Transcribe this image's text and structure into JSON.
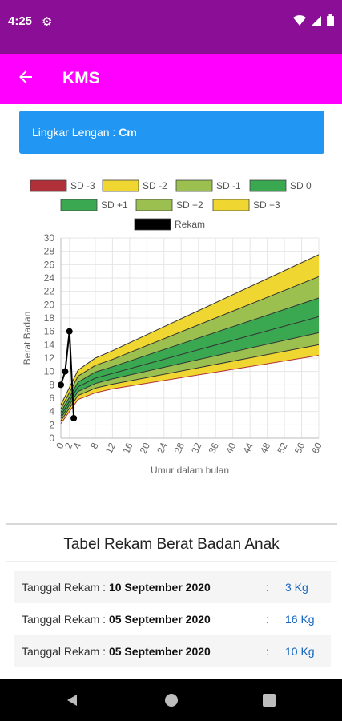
{
  "status_bar": {
    "time": "4:25"
  },
  "app_bar": {
    "title": "KMS"
  },
  "info_box": {
    "label": "Lingkar Lengan :",
    "value": "Cm"
  },
  "chart_data": {
    "type": "area",
    "xlabel": "Umur dalam bulan",
    "ylabel": "Berat Badan",
    "x_ticks": [
      "0",
      "2",
      "4",
      "8",
      "12",
      "16",
      "20",
      "24",
      "28",
      "32",
      "36",
      "40",
      "44",
      "48",
      "52",
      "56",
      "60"
    ],
    "y_ticks": [
      "0",
      "2",
      "4",
      "6",
      "8",
      "10",
      "12",
      "14",
      "16",
      "18",
      "20",
      "22",
      "24",
      "26",
      "28",
      "30"
    ],
    "ylim": [
      0,
      30
    ],
    "legend": [
      "SD -3",
      "SD -2",
      "SD -1",
      "SD 0",
      "SD +1",
      "SD +2",
      "SD +3",
      "Rekam"
    ],
    "legend_colors": [
      "#b0303a",
      "#f0d630",
      "#9cc050",
      "#3aa850",
      "#3aa850",
      "#9cc050",
      "#f0d630",
      "#000000"
    ],
    "bands": {
      "x": [
        0,
        4,
        8,
        12,
        60
      ],
      "sd_m3": [
        2.2,
        5.8,
        6.8,
        7.4,
        12.4
      ],
      "sd_m2": [
        2.6,
        6.4,
        7.5,
        8.1,
        14.0
      ],
      "sd_m1": [
        3.0,
        7.0,
        8.2,
        8.9,
        15.8
      ],
      "sd_0": [
        3.4,
        7.7,
        9.0,
        9.7,
        18.2
      ],
      "sd_p1": [
        3.9,
        8.4,
        9.9,
        10.7,
        21.0
      ],
      "sd_p2": [
        4.4,
        9.3,
        10.9,
        11.8,
        24.2
      ],
      "sd_p3": [
        5.0,
        10.2,
        12.0,
        13.1,
        27.5
      ]
    },
    "rekam": {
      "x": [
        0,
        1,
        2,
        3
      ],
      "y": [
        8,
        10,
        16,
        3
      ]
    }
  },
  "table": {
    "title": "Tabel Rekam Berat Badan Anak",
    "label": "Tanggal Rekam :",
    "rows": [
      {
        "date": "10 September 2020",
        "weight": "3 Kg"
      },
      {
        "date": "05 September 2020",
        "weight": "16 Kg"
      },
      {
        "date": "05 September 2020",
        "weight": "10 Kg"
      }
    ]
  }
}
